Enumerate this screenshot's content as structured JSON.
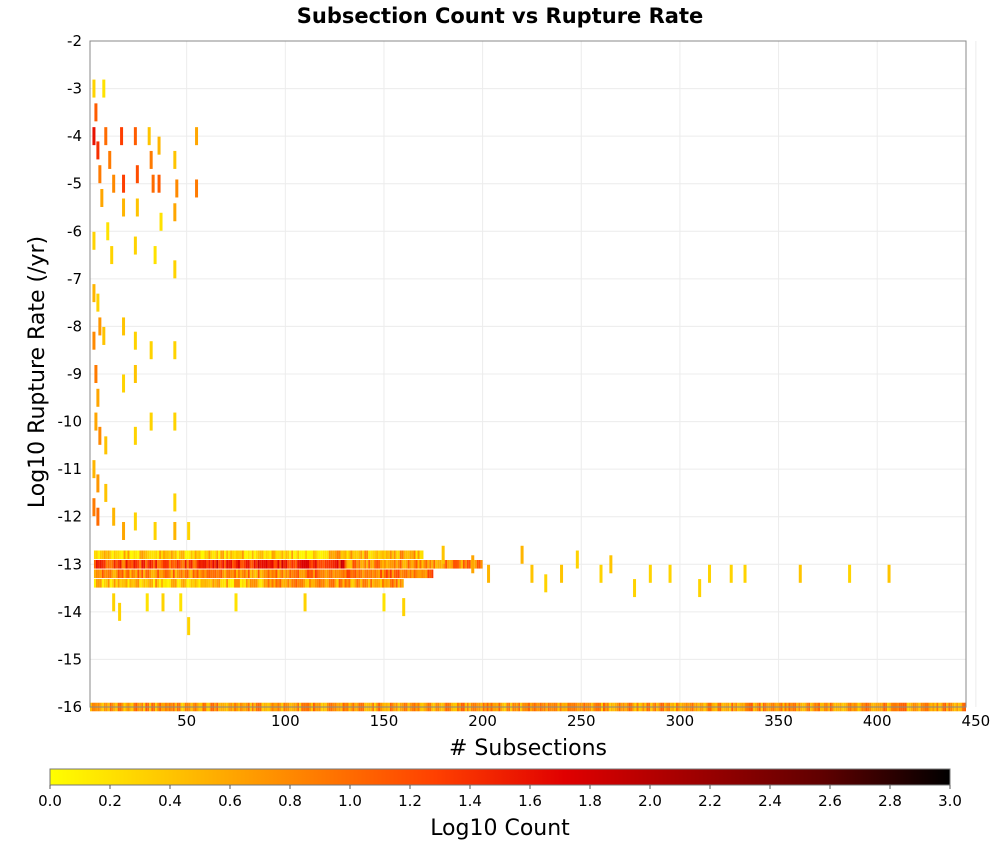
{
  "chart_data": {
    "type": "heatmap",
    "title": "Subsection Count vs Rupture Rate",
    "xlabel": "# Subsections",
    "ylabel": "Log10 Rupture Rate (/yr)",
    "xlim": [
      1,
      445
    ],
    "ylim": [
      -16,
      -2
    ],
    "x_ticks": [
      "50",
      "100",
      "150",
      "200",
      "250",
      "300",
      "350",
      "400",
      "450"
    ],
    "y_ticks": [
      "-2",
      "-3",
      "-4",
      "-5",
      "-6",
      "-7",
      "-8",
      "-9",
      "-10",
      "-11",
      "-12",
      "-13",
      "-14",
      "-15",
      "-16"
    ],
    "grid": true,
    "colorbar": {
      "label": "Log10 Count",
      "range": [
        0.0,
        3.0
      ],
      "ticks": [
        "0.0",
        "0.2",
        "0.4",
        "0.6",
        "0.8",
        "1.0",
        "1.2",
        "1.4",
        "1.6",
        "1.8",
        "2.0",
        "2.2",
        "2.4",
        "2.6",
        "2.8",
        "3.0"
      ],
      "colors": [
        "#ffff00",
        "#ffc000",
        "#ff8000",
        "#ff4000",
        "#e00000",
        "#a00000",
        "#600000",
        "#000000"
      ]
    },
    "cell_y_size": 0.1,
    "runs": [
      {
        "y": -13.0,
        "x_start": 3,
        "x_end": 60,
        "value": 2.0
      },
      {
        "y": -13.0,
        "x_start": 60,
        "x_end": 130,
        "value": 1.5
      },
      {
        "y": -13.0,
        "x_start": 130,
        "x_end": 200,
        "value": 0.8
      },
      {
        "y": -13.2,
        "x_start": 3,
        "x_end": 100,
        "value": 1.6
      },
      {
        "y": -13.2,
        "x_start": 100,
        "x_end": 175,
        "value": 1.0
      },
      {
        "y": -13.4,
        "x_start": 3,
        "x_end": 90,
        "value": 1.2
      },
      {
        "y": -13.4,
        "x_start": 90,
        "x_end": 160,
        "value": 0.7
      },
      {
        "y": -12.8,
        "x_start": 3,
        "x_end": 120,
        "value": 1.1
      },
      {
        "y": -12.8,
        "x_start": 120,
        "x_end": 170,
        "value": 0.5
      },
      {
        "y": -16.0,
        "x_start": 1,
        "x_end": 350,
        "value": 1.5
      },
      {
        "y": -16.0,
        "x_start": 350,
        "x_end": 445,
        "value": 0.7
      }
    ],
    "cells": [
      {
        "x": 3,
        "y": -3.0,
        "value": 0.3
      },
      {
        "x": 4,
        "y": -3.5,
        "value": 1.1
      },
      {
        "x": 3,
        "y": -4.0,
        "value": 1.6
      },
      {
        "x": 5,
        "y": -4.3,
        "value": 1.4
      },
      {
        "x": 6,
        "y": -4.8,
        "value": 0.9
      },
      {
        "x": 7,
        "y": -5.3,
        "value": 0.6
      },
      {
        "x": 8,
        "y": -3.0,
        "value": 0.2
      },
      {
        "x": 9,
        "y": -4.0,
        "value": 1.0
      },
      {
        "x": 11,
        "y": -4.5,
        "value": 0.9
      },
      {
        "x": 13,
        "y": -5.0,
        "value": 0.8
      },
      {
        "x": 17,
        "y": -4.0,
        "value": 1.3
      },
      {
        "x": 18,
        "y": -5.0,
        "value": 1.3
      },
      {
        "x": 18,
        "y": -5.5,
        "value": 0.5
      },
      {
        "x": 24,
        "y": -4.0,
        "value": 1.1
      },
      {
        "x": 25,
        "y": -4.8,
        "value": 1.2
      },
      {
        "x": 25,
        "y": -5.5,
        "value": 0.4
      },
      {
        "x": 31,
        "y": -4.0,
        "value": 0.4
      },
      {
        "x": 32,
        "y": -4.5,
        "value": 0.9
      },
      {
        "x": 33,
        "y": -5.0,
        "value": 1.0
      },
      {
        "x": 36,
        "y": -4.2,
        "value": 0.5
      },
      {
        "x": 36,
        "y": -5.0,
        "value": 1.1
      },
      {
        "x": 37,
        "y": -5.8,
        "value": 0.2
      },
      {
        "x": 44,
        "y": -4.5,
        "value": 0.4
      },
      {
        "x": 45,
        "y": -5.1,
        "value": 0.8
      },
      {
        "x": 55,
        "y": -4.0,
        "value": 0.6
      },
      {
        "x": 55,
        "y": -5.1,
        "value": 0.9
      },
      {
        "x": 44,
        "y": -5.6,
        "value": 0.6
      },
      {
        "x": 3,
        "y": -6.2,
        "value": 0.3
      },
      {
        "x": 10,
        "y": -6.0,
        "value": 0.2
      },
      {
        "x": 12,
        "y": -6.5,
        "value": 0.3
      },
      {
        "x": 24,
        "y": -6.3,
        "value": 0.3
      },
      {
        "x": 34,
        "y": -6.5,
        "value": 0.2
      },
      {
        "x": 44,
        "y": -6.8,
        "value": 0.3
      },
      {
        "x": 3,
        "y": -7.3,
        "value": 0.5
      },
      {
        "x": 5,
        "y": -7.5,
        "value": 0.3
      },
      {
        "x": 6,
        "y": -8.0,
        "value": 0.7
      },
      {
        "x": 3,
        "y": -8.3,
        "value": 0.8
      },
      {
        "x": 4,
        "y": -9.0,
        "value": 0.9
      },
      {
        "x": 5,
        "y": -9.5,
        "value": 0.6
      },
      {
        "x": 8,
        "y": -8.2,
        "value": 0.4
      },
      {
        "x": 18,
        "y": -8.0,
        "value": 0.4
      },
      {
        "x": 24,
        "y": -8.3,
        "value": 0.3
      },
      {
        "x": 32,
        "y": -8.5,
        "value": 0.3
      },
      {
        "x": 44,
        "y": -8.5,
        "value": 0.3
      },
      {
        "x": 18,
        "y": -9.2,
        "value": 0.3
      },
      {
        "x": 24,
        "y": -9.0,
        "value": 0.4
      },
      {
        "x": 4,
        "y": -10.0,
        "value": 0.6
      },
      {
        "x": 6,
        "y": -10.3,
        "value": 0.8
      },
      {
        "x": 9,
        "y": -10.5,
        "value": 0.4
      },
      {
        "x": 24,
        "y": -10.3,
        "value": 0.3
      },
      {
        "x": 32,
        "y": -10.0,
        "value": 0.3
      },
      {
        "x": 44,
        "y": -10.0,
        "value": 0.3
      },
      {
        "x": 3,
        "y": -11.0,
        "value": 0.5
      },
      {
        "x": 5,
        "y": -11.3,
        "value": 0.7
      },
      {
        "x": 3,
        "y": -11.8,
        "value": 0.9
      },
      {
        "x": 5,
        "y": -12.0,
        "value": 1.0
      },
      {
        "x": 9,
        "y": -11.5,
        "value": 0.4
      },
      {
        "x": 13,
        "y": -12.0,
        "value": 0.5
      },
      {
        "x": 18,
        "y": -12.3,
        "value": 0.6
      },
      {
        "x": 24,
        "y": -12.1,
        "value": 0.3
      },
      {
        "x": 44,
        "y": -11.7,
        "value": 0.3
      },
      {
        "x": 44,
        "y": -12.3,
        "value": 0.5
      },
      {
        "x": 51,
        "y": -12.3,
        "value": 0.3
      },
      {
        "x": 34,
        "y": -12.3,
        "value": 0.3
      },
      {
        "x": 16,
        "y": -14.0,
        "value": 0.3
      },
      {
        "x": 13,
        "y": -13.8,
        "value": 0.3
      },
      {
        "x": 30,
        "y": -13.8,
        "value": 0.2
      },
      {
        "x": 38,
        "y": -13.8,
        "value": 0.3
      },
      {
        "x": 51,
        "y": -14.3,
        "value": 0.3
      },
      {
        "x": 47,
        "y": -13.8,
        "value": 0.2
      },
      {
        "x": 75,
        "y": -13.8,
        "value": 0.2
      },
      {
        "x": 110,
        "y": -13.8,
        "value": 0.3
      },
      {
        "x": 150,
        "y": -13.8,
        "value": 0.2
      },
      {
        "x": 160,
        "y": -13.9,
        "value": 0.3
      },
      {
        "x": 220,
        "y": -12.8,
        "value": 0.5
      },
      {
        "x": 225,
        "y": -13.2,
        "value": 0.4
      },
      {
        "x": 248,
        "y": -12.9,
        "value": 0.3
      },
      {
        "x": 265,
        "y": -13.0,
        "value": 0.4
      },
      {
        "x": 277,
        "y": -13.5,
        "value": 0.3
      },
      {
        "x": 285,
        "y": -13.2,
        "value": 0.3
      },
      {
        "x": 295,
        "y": -13.2,
        "value": 0.3
      },
      {
        "x": 310,
        "y": -13.5,
        "value": 0.3
      },
      {
        "x": 315,
        "y": -13.2,
        "value": 0.3
      },
      {
        "x": 326,
        "y": -13.2,
        "value": 0.3
      },
      {
        "x": 333,
        "y": -13.2,
        "value": 0.3
      },
      {
        "x": 361,
        "y": -13.2,
        "value": 0.4
      },
      {
        "x": 386,
        "y": -13.2,
        "value": 0.3
      },
      {
        "x": 406,
        "y": -13.2,
        "value": 0.4
      },
      {
        "x": 232,
        "y": -13.4,
        "value": 0.3
      },
      {
        "x": 260,
        "y": -13.2,
        "value": 0.3
      },
      {
        "x": 240,
        "y": -13.2,
        "value": 0.4
      },
      {
        "x": 203,
        "y": -13.2,
        "value": 0.5
      },
      {
        "x": 195,
        "y": -13.0,
        "value": 0.6
      },
      {
        "x": 180,
        "y": -12.8,
        "value": 0.4
      }
    ]
  }
}
